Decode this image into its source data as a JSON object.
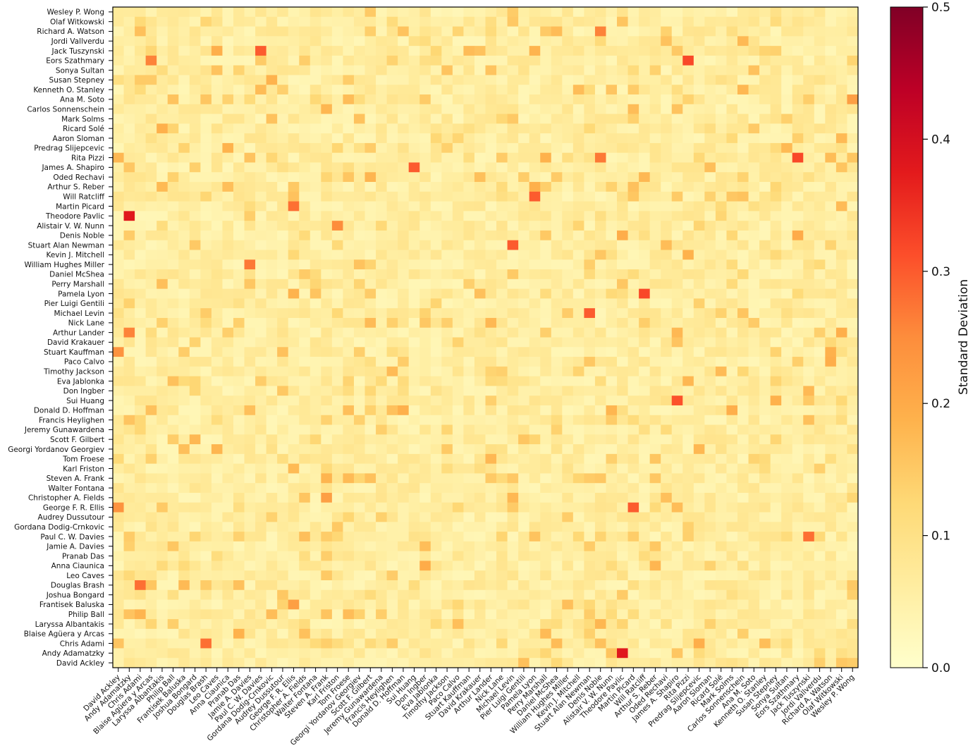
{
  "chart_data": {
    "type": "heatmap",
    "row_labels": [
      "Wesley P. Wong",
      "Olaf Witkowski",
      "Richard A. Watson",
      "Jordi Vallverdu",
      "Jack Tuszynski",
      "Eors Szathmary",
      "Sonya Sultan",
      "Susan Stepney",
      "Kenneth O. Stanley",
      "Ana M. Soto",
      "Carlos Sonnenschein",
      "Mark Solms",
      "Ricard Solé",
      "Aaron Sloman",
      "Predrag Slijepcevic",
      "Rita Pizzi",
      "James A. Shapiro",
      "Oded Rechavi",
      "Arthur S. Reber",
      "Will Ratcliff",
      "Martin Picard",
      "Theodore Pavlic",
      "Alistair V. W. Nunn",
      "Denis Noble",
      "Stuart Alan Newman",
      "Kevin J. Mitchell",
      "William Hughes Miller",
      "Daniel McShea",
      "Perry Marshall",
      "Pamela Lyon",
      "Pier Luigi Gentili",
      "Michael Levin",
      "Nick Lane",
      "Arthur Lander",
      "David Krakauer",
      "Stuart Kauffman",
      "Paco Calvo",
      "Timothy Jackson",
      "Eva Jablonka",
      "Don Ingber",
      "Sui Huang",
      "Donald D. Hoffman",
      "Francis Heylighen",
      "Jeremy Gunawardena",
      "Scott F. Gilbert",
      "Georgi Yordanov Georgiev",
      "Tom Froese",
      "Karl Friston",
      "Steven A. Frank",
      "Walter Fontana",
      "Christopher A. Fields",
      "George F. R. Ellis",
      "Audrey Dussutour",
      "Gordana Dodig-Crnkovic",
      "Paul C. W. Davies",
      "Jamie A. Davies",
      "Pranab Das",
      "Anna Ciaunica",
      "Leo Caves",
      "Douglas Brash",
      "Joshua Bongard",
      "Frantisek Baluska",
      "Philip Ball",
      "Laryssa Albantakis",
      "Blaise Agüera y Arcas",
      "Chris Adami",
      "Andy Adamatzky",
      "David Ackley"
    ],
    "col_labels": [
      "David Ackley",
      "Andy Adamatzky",
      "Chris Adami",
      "Blaise Agüera y Arcas",
      "Laryssa Albantakis",
      "Philip Ball",
      "Frantisek Baluska",
      "Joshua Bongard",
      "Douglas Brash",
      "Leo Caves",
      "Anna Ciaunica",
      "Pranab Das",
      "Jamie A. Davies",
      "Paul C. W. Davies",
      "Gordana Dodig-Crnkovic",
      "Audrey Dussutour",
      "George F. R. Ellis",
      "Christopher A. Fields",
      "Walter Fontana",
      "Steven A. Frank",
      "Karl Friston",
      "Tom Froese",
      "Georgi Yordanov Georgiev",
      "Scott F. Gilbert",
      "Jeremy Gunawardena",
      "Francis Heylighen",
      "Donald D. Hoffman",
      "Sui Huang",
      "Don Ingber",
      "Eva Jablonka",
      "Timothy Jackson",
      "Paco Calvo",
      "Stuart Kauffman",
      "David Krakauer",
      "Arthur Lander",
      "Nick Lane",
      "Michael Levin",
      "Pier Luigi Gentili",
      "Pamela Lyon",
      "Perry Marshall",
      "Daniel McShea",
      "William Hughes Miller",
      "Kevin J. Mitchell",
      "Stuart Alan Newman",
      "Denis Noble",
      "Alistair V. W. Nunn",
      "Theodore Pavlic",
      "Martin Picard",
      "Will Ratcliff",
      "Arthur S. Reber",
      "Oded Rechavi",
      "James A. Shapiro",
      "Rita Pizzi",
      "Predrag Slijepcevic",
      "Aaron Sloman",
      "Ricard Solé",
      "Mark Solms",
      "Carlos Sonnenschein",
      "Ana M. Soto",
      "Kenneth O. Stanley",
      "Susan Stepney",
      "Sonya Sultan",
      "Eors Szathmary",
      "Jack Tuszynski",
      "Jordi Vallverdu",
      "Richard A. Watson",
      "Olaf Witkowski",
      "Wesley P. Wong"
    ],
    "base_range": [
      0.03,
      0.09
    ],
    "highlights": [
      {
        "row": "Theodore Pavlic",
        "col": "Andy Adamatzky",
        "value": 0.38
      },
      {
        "row": "Andy Adamatzky",
        "col": "Theodore Pavlic",
        "value": 0.38
      },
      {
        "row": "Eors Szathmary",
        "col": "Rita Pizzi",
        "value": 0.32
      },
      {
        "row": "Rita Pizzi",
        "col": "Eors Szathmary",
        "value": 0.32
      },
      {
        "row": "Pamela Lyon",
        "col": "Will Ratcliff",
        "value": 0.32
      },
      {
        "row": "Will Ratcliff",
        "col": "Pamela Lyon",
        "value": 0.3
      },
      {
        "row": "Michael Levin",
        "col": "Stuart Alan Newman",
        "value": 0.3
      },
      {
        "row": "Stuart Alan Newman",
        "col": "Michael Levin",
        "value": 0.3
      },
      {
        "row": "James A. Shapiro",
        "col": "Sui Huang",
        "value": 0.3
      },
      {
        "row": "Sui Huang",
        "col": "James A. Shapiro",
        "value": 0.31
      },
      {
        "row": "George F. R. Ellis",
        "col": "Martin Picard",
        "value": 0.3
      },
      {
        "row": "Martin Picard",
        "col": "George F. R. Ellis",
        "value": 0.28
      },
      {
        "row": "Jack Tuszynski",
        "col": "Paul C. W. Davies",
        "value": 0.3
      },
      {
        "row": "Paul C. W. Davies",
        "col": "Jack Tuszynski",
        "value": 0.28
      },
      {
        "row": "Douglas Brash",
        "col": "Chris Adami",
        "value": 0.28
      },
      {
        "row": "Chris Adami",
        "col": "Douglas Brash",
        "value": 0.28
      },
      {
        "row": "Rita Pizzi",
        "col": "Denis Noble",
        "value": 0.27
      },
      {
        "row": "William Hughes Miller",
        "col": "Jamie A. Davies",
        "value": 0.27
      },
      {
        "row": "Arthur Lander",
        "col": "Andy Adamatzky",
        "value": 0.26
      },
      {
        "row": "Richard A. Watson",
        "col": "Denis Noble",
        "value": 0.26
      },
      {
        "row": "Eors Szathmary",
        "col": "Blaise Agüera y Arcas",
        "value": 0.26
      },
      {
        "row": "Alistair V. W. Nunn",
        "col": "Karl Friston",
        "value": 0.25
      },
      {
        "row": "Christopher A. Fields",
        "col": "Steven A. Frank",
        "value": 0.22
      },
      {
        "row": "Frantisek Baluska",
        "col": "George F. R. Ellis",
        "value": 0.22
      },
      {
        "row": "Stuart Kauffman",
        "col": "David Ackley",
        "value": 0.24
      },
      {
        "row": "George F. R. Ellis",
        "col": "David Ackley",
        "value": 0.24
      },
      {
        "row": "Ana M. Soto",
        "col": "Wesley P. Wong",
        "value": 0.22
      }
    ],
    "colorbar": {
      "label": "Standard Deviation",
      "range": [
        0.0,
        0.5
      ],
      "ticks": [
        "0.0",
        "0.1",
        "0.2",
        "0.3",
        "0.4",
        "0.5"
      ],
      "colormap": "YlOrRd"
    }
  }
}
